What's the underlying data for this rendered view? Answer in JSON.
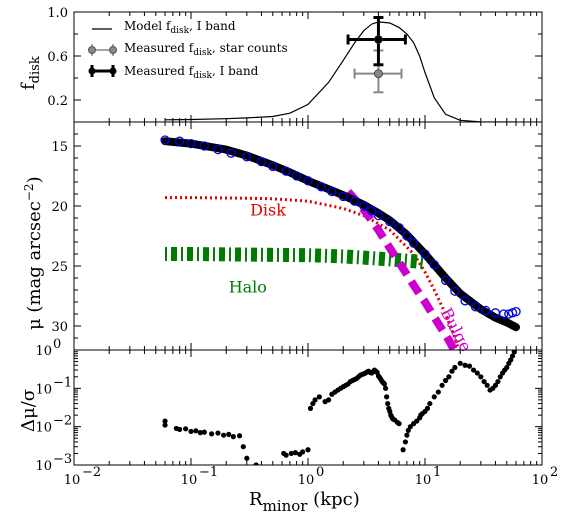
{
  "chart_data": [
    {
      "panel": "top",
      "type": "line",
      "ylabel": "f",
      "ylabel_sub": "disk",
      "xscale": "log",
      "xlim": [
        0.01,
        100
      ],
      "ylim": [
        0.0,
        1.0
      ],
      "yticks": [
        "0.2",
        "0.6",
        "1.0"
      ],
      "legend_placement": "upper-left",
      "legend": [
        {
          "marker": "line",
          "prefix": "Model f",
          "sub": "disk",
          "suffix": ", I band"
        },
        {
          "marker": "gray-errorbar",
          "prefix": "Measured f",
          "sub": "disk",
          "suffix": ", star counts"
        },
        {
          "marker": "black-errorbar",
          "prefix": "Measured f",
          "sub": "disk",
          "suffix": ", I band"
        }
      ],
      "model_curve": {
        "x": [
          0.06,
          0.1,
          0.2,
          0.3,
          0.5,
          0.7,
          1.0,
          1.5,
          2.0,
          2.5,
          3.0,
          3.5,
          4.0,
          5.0,
          6.0,
          7.0,
          8.0,
          9.0,
          10.0,
          12.0,
          15.0,
          20.0,
          30.0,
          50.0,
          60.0
        ],
        "y": [
          0.02,
          0.023,
          0.03,
          0.037,
          0.05,
          0.08,
          0.16,
          0.36,
          0.56,
          0.72,
          0.83,
          0.89,
          0.91,
          0.9,
          0.86,
          0.8,
          0.72,
          0.6,
          0.45,
          0.22,
          0.07,
          0.015,
          0.002,
          0.0,
          0.0
        ]
      },
      "measured_star_counts": {
        "x": 4.0,
        "y": 0.44,
        "xerr": [
          2.5,
          6.3
        ],
        "yerr": [
          0.27,
          0.65
        ]
      },
      "measured_i_band": {
        "x": 4.0,
        "y": 0.75,
        "xerr": [
          2.2,
          6.8
        ],
        "yerr": [
          0.52,
          0.95
        ]
      }
    },
    {
      "panel": "middle",
      "type": "line",
      "ylabel": "μ (mag arcsec",
      "ylabel_sup": "−2",
      "ylabel_end": ")",
      "xscale": "log",
      "xlim": [
        0.01,
        100
      ],
      "ylim": [
        13,
        32
      ],
      "y_inverted": true,
      "yticks": [
        "15",
        "20",
        "25",
        "30"
      ],
      "annotations": [
        {
          "text": "Disk",
          "color": "#e00000",
          "x": 0.32,
          "y": 20.8
        },
        {
          "text": "Halo",
          "color": "#007a00",
          "x": 0.21,
          "y": 27.2
        },
        {
          "text": "Bulge",
          "color": "#cc00cc",
          "x": 13.5,
          "y": 28.8,
          "rotation": 62
        }
      ],
      "series": [
        {
          "name": "Disk",
          "style": "dotted",
          "color": "#e00000",
          "x": [
            0.06,
            0.1,
            0.2,
            0.3,
            0.5,
            1.0,
            2.0,
            3.0,
            5.0,
            8.0,
            10.0,
            12.0,
            15.0,
            18.0,
            21.0
          ],
          "y": [
            19.3,
            19.3,
            19.33,
            19.35,
            19.4,
            19.6,
            20.2,
            20.8,
            22.0,
            24.0,
            25.5,
            27.0,
            29.0,
            31.0,
            33.0
          ]
        },
        {
          "name": "Halo",
          "style": "dashdot",
          "color": "#007a00",
          "x": [
            0.06,
            0.1,
            0.3,
            1.0,
            2.0,
            3.0,
            5.0,
            8.0,
            10.0
          ],
          "y": [
            24.0,
            24.0,
            24.05,
            24.1,
            24.2,
            24.3,
            24.45,
            24.6,
            24.7
          ]
        },
        {
          "name": "Bulge",
          "style": "dashed",
          "color": "#cc00cc",
          "x": [
            2.2,
            3.0,
            4.0,
            5.0,
            6.0,
            7.0,
            8.0,
            10.0,
            13.0,
            16.0,
            20.0
          ],
          "y": [
            18.8,
            20.3,
            22.0,
            23.5,
            24.7,
            25.7,
            26.6,
            28.0,
            29.8,
            31.2,
            33.0
          ]
        },
        {
          "name": "Model total",
          "style": "thick-solid",
          "color": "#000000",
          "x": [
            0.06,
            0.1,
            0.2,
            0.3,
            0.5,
            0.7,
            1.0,
            1.5,
            2.0,
            3.0,
            4.0,
            5.0,
            7.0,
            10.0,
            15.0,
            20.0,
            30.0,
            40.0,
            50.0,
            60.0
          ],
          "y": [
            14.6,
            14.8,
            15.3,
            15.8,
            16.6,
            17.2,
            17.9,
            18.6,
            19.1,
            19.9,
            20.6,
            21.2,
            22.4,
            24.0,
            26.0,
            27.3,
            28.6,
            29.3,
            29.7,
            30.1
          ]
        },
        {
          "name": "Observed profile",
          "style": "open-circles",
          "color": "#0000ee",
          "x": [
            0.06,
            0.08,
            0.1,
            0.13,
            0.17,
            0.22,
            0.3,
            0.4,
            0.5,
            0.65,
            0.8,
            1.0,
            1.3,
            1.6,
            2.0,
            2.5,
            3.0,
            3.5,
            4.0,
            5.0,
            6.0,
            7.0,
            8.0,
            10.0,
            12.0,
            15.0,
            18.0,
            22.0,
            27.0,
            33.0,
            40.0,
            47.0,
            52.0,
            56.0,
            60.0
          ],
          "y": [
            14.5,
            14.6,
            14.8,
            15.0,
            15.3,
            15.6,
            15.9,
            16.3,
            16.7,
            17.1,
            17.5,
            17.9,
            18.4,
            18.8,
            19.2,
            19.6,
            20.0,
            20.4,
            20.8,
            21.3,
            21.8,
            22.5,
            23.1,
            24.0,
            24.9,
            26.2,
            27.1,
            27.9,
            28.4,
            28.7,
            28.9,
            29.0,
            29.0,
            28.9,
            28.8
          ]
        }
      ]
    },
    {
      "panel": "bottom",
      "type": "scatter",
      "ylabel": "Δμ/σ",
      "xlabel": "R",
      "xlabel_sub": "minor",
      "xlabel_end": " (kpc)",
      "xscale": "log",
      "yscale": "log",
      "xlim": [
        0.01,
        100
      ],
      "ylim": [
        0.001,
        1
      ],
      "xticks": [
        {
          "base": "10",
          "exp": "−2"
        },
        {
          "base": "10",
          "exp": "−1"
        },
        {
          "base": "10",
          "exp": "0"
        },
        {
          "base": "10",
          "exp": "1"
        },
        {
          "base": "10",
          "exp": "2"
        }
      ],
      "yticks": [
        {
          "base": "10",
          "exp": "−3"
        },
        {
          "base": "10",
          "exp": "−2"
        },
        {
          "base": "10",
          "exp": "−1"
        },
        {
          "base": "10",
          "exp": "0"
        }
      ],
      "points": {
        "x": [
          0.06,
          0.06,
          0.075,
          0.08,
          0.09,
          0.1,
          0.11,
          0.12,
          0.13,
          0.15,
          0.17,
          0.19,
          0.21,
          0.23,
          0.26,
          0.28,
          0.3,
          0.36,
          0.62,
          0.65,
          0.72,
          0.78,
          0.85,
          0.9,
          1.0,
          1.05,
          1.1,
          1.15,
          1.25,
          1.4,
          1.5,
          1.6,
          1.7,
          1.8,
          1.9,
          2.0,
          2.1,
          2.2,
          2.3,
          2.4,
          2.5,
          2.6,
          2.7,
          2.8,
          2.9,
          3.0,
          3.1,
          3.2,
          3.3,
          3.4,
          3.5,
          3.6,
          3.7,
          3.8,
          3.9,
          4.0,
          4.1,
          4.2,
          4.3,
          4.4,
          4.5,
          4.6,
          4.7,
          4.8,
          4.9,
          5.0,
          5.1,
          5.2,
          5.3,
          5.5,
          5.8,
          6.0,
          6.5,
          6.8,
          7.0,
          7.2,
          7.5,
          8.0,
          8.5,
          9.0,
          9.2,
          9.5,
          10.0,
          10.5,
          11.0,
          12.0,
          13.0,
          14.0,
          15.0,
          16.0,
          17.0,
          18.0,
          20.0,
          22.0,
          24.0,
          26.0,
          28.0,
          30.0,
          32.0,
          34.0,
          36.0,
          38.0,
          40.0,
          42.0,
          44.0,
          46.0,
          48.0,
          50.0,
          52.0,
          54.0,
          56.0,
          58.0
        ],
        "y": [
          0.014,
          0.011,
          0.009,
          0.0085,
          0.0088,
          0.0075,
          0.0078,
          0.007,
          0.0072,
          0.0065,
          0.0068,
          0.006,
          0.0063,
          0.0055,
          0.0058,
          0.003,
          0.0015,
          0.001,
          0.002,
          0.0018,
          0.002,
          0.0021,
          0.0019,
          0.0022,
          0.0025,
          0.03,
          0.04,
          0.05,
          0.06,
          0.045,
          0.05,
          0.07,
          0.08,
          0.09,
          0.1,
          0.11,
          0.12,
          0.13,
          0.15,
          0.16,
          0.17,
          0.18,
          0.2,
          0.22,
          0.23,
          0.24,
          0.25,
          0.27,
          0.28,
          0.26,
          0.25,
          0.27,
          0.3,
          0.28,
          0.26,
          0.21,
          0.19,
          0.17,
          0.15,
          0.14,
          0.13,
          0.1,
          0.06,
          0.04,
          0.03,
          0.025,
          0.02,
          0.018,
          0.016,
          0.015,
          0.013,
          0.012,
          0.0025,
          0.004,
          0.006,
          0.008,
          0.01,
          0.012,
          0.014,
          0.017,
          0.02,
          0.022,
          0.025,
          0.03,
          0.04,
          0.06,
          0.08,
          0.12,
          0.16,
          0.2,
          0.28,
          0.35,
          0.45,
          0.4,
          0.38,
          0.3,
          0.25,
          0.2,
          0.15,
          0.12,
          0.09,
          0.1,
          0.12,
          0.15,
          0.2,
          0.25,
          0.3,
          0.35,
          0.45,
          0.55,
          0.7,
          0.9
        ]
      }
    }
  ]
}
